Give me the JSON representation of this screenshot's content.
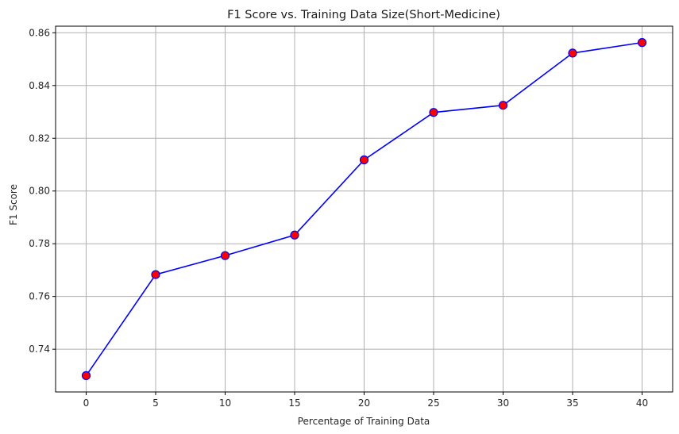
{
  "chart_data": {
    "type": "line",
    "title": "F1 Score vs. Training Data Size(Short-Medicine)",
    "xlabel": "Percentage of Training Data",
    "ylabel": "F1 Score",
    "x": [
      0,
      5,
      10,
      15,
      20,
      25,
      30,
      35,
      40
    ],
    "series": [
      {
        "values": [
          0.73,
          0.7683,
          0.7755,
          0.7833,
          0.8118,
          0.8298,
          0.8325,
          0.8523,
          0.8563
        ],
        "line_color": "#0000ff",
        "marker_face": "#ff0000",
        "marker_edge": "#0000ff"
      }
    ],
    "xlim": [
      -2.2,
      42.2
    ],
    "ylim": [
      0.7238,
      0.8625
    ],
    "xticks": [
      0,
      5,
      10,
      15,
      20,
      25,
      30,
      35,
      40
    ],
    "yticks": [
      0.74,
      0.76,
      0.78,
      0.8,
      0.82,
      0.84,
      0.86
    ],
    "ytick_labels": [
      "0.74",
      "0.76",
      "0.78",
      "0.80",
      "0.82",
      "0.84",
      "0.86"
    ],
    "grid": true,
    "legend": "none"
  }
}
